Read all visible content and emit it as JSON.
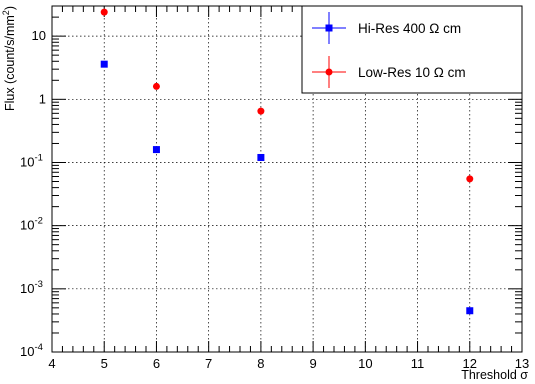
{
  "chart_data": {
    "type": "scatter",
    "xlabel": "Threshold σ",
    "ylabel": "Flux (count/s/mm²)",
    "ylabel_parts": {
      "before": "Flux (count/s/mm",
      "sup": "2",
      "after": ")"
    },
    "xlim": [
      4,
      13
    ],
    "ylim": [
      0.0001,
      30
    ],
    "y_scale": "log",
    "grid": true,
    "legend_position": "top-right",
    "x_ticks": [
      "4",
      "5",
      "6",
      "7",
      "8",
      "9",
      "10",
      "11",
      "12",
      "13"
    ],
    "y_ticks": [
      {
        "base": "10",
        "exp": "-4",
        "value": 0.0001
      },
      {
        "base": "10",
        "exp": "-3",
        "value": 0.001
      },
      {
        "base": "10",
        "exp": "-2",
        "value": 0.01
      },
      {
        "base": "10",
        "exp": "-1",
        "value": 0.1
      },
      {
        "base": "1",
        "exp": "",
        "value": 1
      },
      {
        "base": "10",
        "exp": "",
        "value": 10
      }
    ],
    "series": [
      {
        "name": "Hi-Res 400 Ω cm",
        "color": "#0000ff",
        "marker": "square",
        "x": [
          5,
          6,
          8,
          12
        ],
        "y": [
          3.6,
          0.16,
          0.12,
          0.00045
        ]
      },
      {
        "name": "Low-Res 10 Ω cm",
        "color": "#ff0000",
        "marker": "circle",
        "x": [
          5,
          6,
          8,
          12
        ],
        "y": [
          24,
          1.6,
          0.65,
          0.055
        ]
      }
    ]
  }
}
